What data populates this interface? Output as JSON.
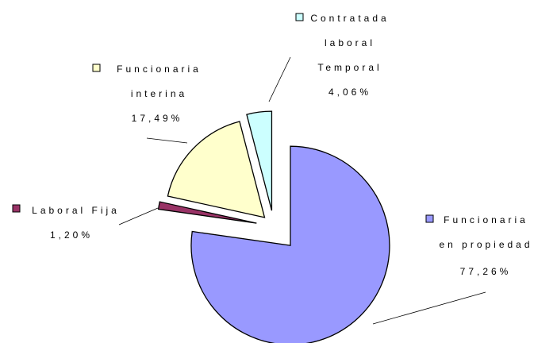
{
  "chart_data": {
    "type": "pie",
    "categories": [
      "Funcionaria en propiedad",
      "Laboral Fija",
      "Funcionaria interina",
      "Contratada laboral Temporal"
    ],
    "values": [
      77.26,
      1.2,
      17.49,
      4.06
    ],
    "value_labels": [
      "77,26%",
      "1,20%",
      "17,49%",
      "4,06%"
    ],
    "colors": [
      "#9999ff",
      "#993366",
      "#ffffcc",
      "#ccffff"
    ]
  }
}
